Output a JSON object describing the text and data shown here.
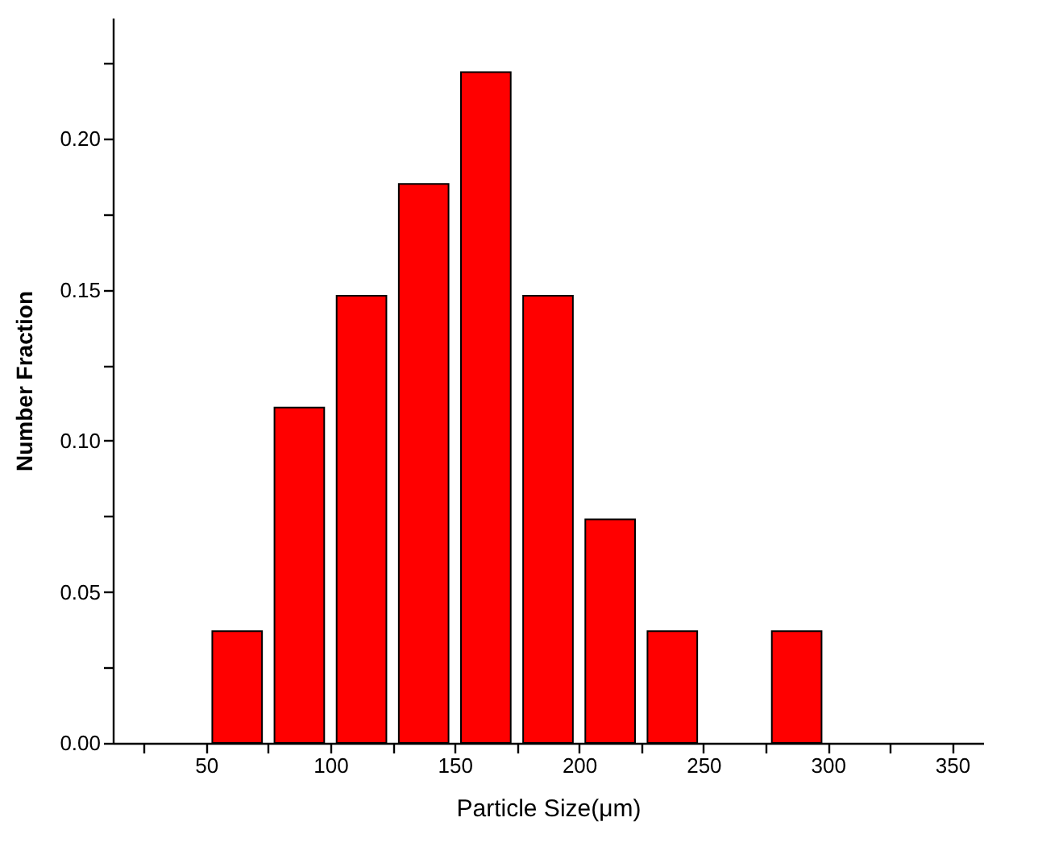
{
  "chart_data": {
    "type": "histogram",
    "xlabel": "Particle Size(μm)",
    "ylabel": "Number Fraction",
    "bins": [
      50,
      75,
      100,
      125,
      150,
      175,
      200,
      225,
      250,
      275,
      300
    ],
    "values": [
      0.037,
      0.111,
      0.148,
      0.185,
      0.222,
      0.148,
      0.074,
      0.037,
      0,
      0.037
    ],
    "color": "#ff0000",
    "xlim": [
      12.5,
      362.5
    ],
    "xticks": [
      {
        "value": 25,
        "label": null
      },
      50,
      {
        "value": 75,
        "label": null
      },
      100,
      {
        "value": 125,
        "label": null
      },
      150,
      {
        "value": 175,
        "label": null
      },
      200,
      {
        "value": 225,
        "label": null
      },
      250,
      {
        "value": 275,
        "label": null
      },
      300,
      {
        "value": 325,
        "label": null
      },
      350
    ],
    "ylim": [
      0,
      0.24
    ],
    "yticks": [
      {
        "value": 0,
        "label": "0.00"
      },
      {
        "value": 0.025,
        "label": null
      },
      {
        "value": 0.05,
        "label": "0.05"
      },
      {
        "value": 0.075,
        "label": null
      },
      {
        "value": 0.1,
        "label": "0.10"
      },
      {
        "value": 0.125,
        "label": null
      },
      {
        "value": 0.15,
        "label": "0.15"
      },
      {
        "value": 0.175,
        "label": null
      },
      {
        "value": 0.2,
        "label": "0.20"
      },
      {
        "value": 0.225,
        "label": null
      }
    ],
    "grid": false
  }
}
